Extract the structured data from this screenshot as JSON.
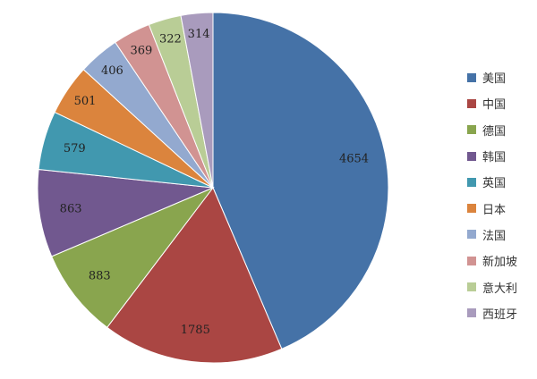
{
  "chart_data": {
    "type": "pie",
    "categories": [
      "美国",
      "中国",
      "德国",
      "韩国",
      "英国",
      "日本",
      "法国",
      "新加坡",
      "意大利",
      "西班牙"
    ],
    "values": [
      4654,
      1785,
      883,
      863,
      579,
      501,
      406,
      369,
      322,
      314
    ],
    "colors": [
      "#4572A7",
      "#AA4643",
      "#89A54E",
      "#71588F",
      "#4198AF",
      "#DB843D",
      "#93A9CF",
      "#D19392",
      "#B9CD96",
      "#A99BBD"
    ],
    "start_angle_deg": 0,
    "direction": "clockwise",
    "legend_position": "right"
  }
}
